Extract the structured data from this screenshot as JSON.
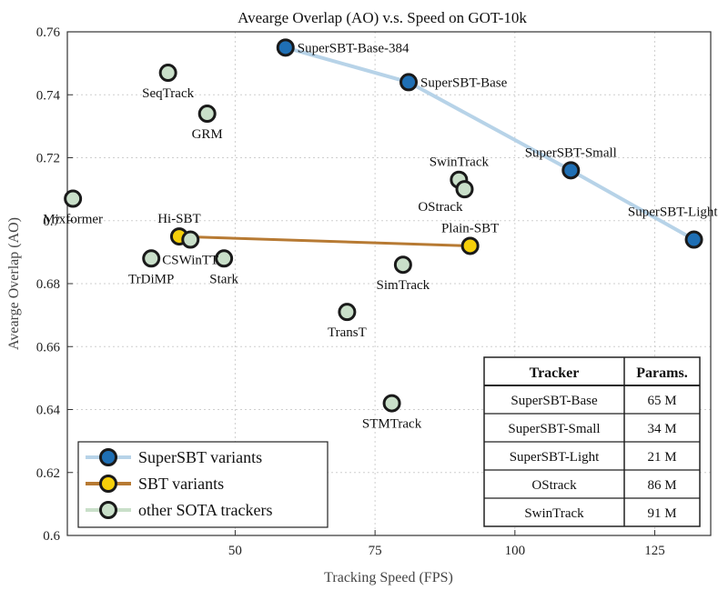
{
  "chart_data": {
    "type": "scatter",
    "title": "Avearge Overlap (AO) v.s. Speed on GOT-10k",
    "xlabel": "Tracking Speed (FPS)",
    "ylabel": "Avearge Overlap (AO)",
    "xlim": [
      20,
      135
    ],
    "ylim": [
      0.6,
      0.76
    ],
    "xticks": [
      50,
      75,
      100,
      125
    ],
    "yticks": [
      0.6,
      0.62,
      0.64,
      0.66,
      0.68,
      0.7,
      0.72,
      0.74,
      0.76
    ],
    "ytick_labels": [
      "0.6",
      "0.62",
      "0.64",
      "0.66",
      "0.68",
      "0.7",
      "0.72",
      "0.74",
      "0.76"
    ],
    "grid": true,
    "legend_position": "bottom-left",
    "colors": {
      "superSBT_line": "#b7d3e8",
      "superSBT_marker": "#1f6fb4",
      "sbt_line": "#b77a33",
      "sbt_marker": "#f5cf0a",
      "other_marker": "#c9dfc9",
      "marker_edge": "#1a1a1a"
    },
    "series": [
      {
        "name": "SuperSBT variants",
        "connected": true,
        "points": [
          {
            "label": "SuperSBT-Base-384",
            "x": 59,
            "y": 0.755,
            "anchor": "right"
          },
          {
            "label": "SuperSBT-Base",
            "x": 81,
            "y": 0.744,
            "anchor": "right"
          },
          {
            "label": "SuperSBT-Small",
            "x": 110,
            "y": 0.716,
            "anchor": "above"
          },
          {
            "label": "SuperSBT-Light",
            "x": 132,
            "y": 0.694,
            "anchor": "above-left"
          }
        ]
      },
      {
        "name": "SBT variants",
        "connected": true,
        "points": [
          {
            "label": "Hi-SBT",
            "x": 40,
            "y": 0.695,
            "anchor": "above"
          },
          {
            "label": "Plain-SBT",
            "x": 92,
            "y": 0.692,
            "anchor": "above"
          }
        ]
      },
      {
        "name": "other SOTA trackers",
        "connected": false,
        "points": [
          {
            "label": "SeqTrack",
            "x": 38,
            "y": 0.747,
            "anchor": "below"
          },
          {
            "label": "GRM",
            "x": 45,
            "y": 0.734,
            "anchor": "below"
          },
          {
            "label": "Mixformer",
            "x": 21,
            "y": 0.707,
            "anchor": "below"
          },
          {
            "label": "CSWinTT",
            "x": 42,
            "y": 0.694,
            "anchor": "below"
          },
          {
            "label": "TrDiMP",
            "x": 35,
            "y": 0.688,
            "anchor": "below"
          },
          {
            "label": "Stark",
            "x": 48,
            "y": 0.688,
            "anchor": "below"
          },
          {
            "label": "SwinTrack",
            "x": 90,
            "y": 0.713,
            "anchor": "above"
          },
          {
            "label": "OStrack",
            "x": 91,
            "y": 0.71,
            "anchor": "below-left"
          },
          {
            "label": "SimTrack",
            "x": 80,
            "y": 0.686,
            "anchor": "below"
          },
          {
            "label": "TransT",
            "x": 70,
            "y": 0.671,
            "anchor": "below"
          },
          {
            "label": "STMTrack",
            "x": 78,
            "y": 0.642,
            "anchor": "below"
          }
        ]
      }
    ],
    "table": {
      "headers": [
        "Tracker",
        "Params."
      ],
      "rows": [
        [
          "SuperSBT-Base",
          "65 M"
        ],
        [
          "SuperSBT-Small",
          "34 M"
        ],
        [
          "SuperSBT-Light",
          "21 M"
        ],
        [
          "OStrack",
          "86 M"
        ],
        [
          "SwinTrack",
          "91 M"
        ]
      ]
    }
  }
}
